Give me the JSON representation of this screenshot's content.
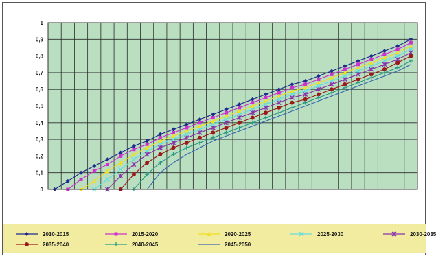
{
  "chart_data": {
    "type": "line",
    "y_ticks": [
      "0",
      "0,1",
      "0,2",
      "0,3",
      "0,4",
      "0,5",
      "0,6",
      "0,7",
      "0,8",
      "0,9",
      "1"
    ],
    "ylim": [
      0,
      1
    ],
    "x_count": 28,
    "grid": true,
    "legend_placement": "bottom",
    "plot_background": "#b9dfc0",
    "series": [
      {
        "name": "2010-2015",
        "color": "#1f2a8c",
        "marker": "diamond",
        "values": [
          0.0,
          0.05,
          0.1,
          0.14,
          0.18,
          0.22,
          0.26,
          0.29,
          0.33,
          0.36,
          0.39,
          0.42,
          0.45,
          0.48,
          0.51,
          0.54,
          0.57,
          0.6,
          0.63,
          0.65,
          0.68,
          0.71,
          0.74,
          0.77,
          0.8,
          0.83,
          0.86,
          0.9
        ]
      },
      {
        "name": "2015-2020",
        "color": "#cc33cc",
        "marker": "square",
        "values": [
          null,
          0.0,
          0.06,
          0.11,
          0.15,
          0.2,
          0.24,
          0.27,
          0.31,
          0.34,
          0.37,
          0.4,
          0.43,
          0.46,
          0.49,
          0.52,
          0.55,
          0.58,
          0.61,
          0.63,
          0.66,
          0.69,
          0.72,
          0.75,
          0.78,
          0.81,
          0.84,
          0.88
        ]
      },
      {
        "name": "2020-2025",
        "color": "#f0e020",
        "marker": "triangle",
        "values": [
          null,
          null,
          0.0,
          0.05,
          0.11,
          0.16,
          0.21,
          0.25,
          0.29,
          0.32,
          0.35,
          0.38,
          0.41,
          0.44,
          0.47,
          0.5,
          0.53,
          0.56,
          0.59,
          0.61,
          0.64,
          0.67,
          0.7,
          0.73,
          0.76,
          0.79,
          0.82,
          0.86
        ]
      },
      {
        "name": "2025-2030",
        "color": "#66dddd",
        "marker": "x",
        "values": [
          null,
          null,
          null,
          0.0,
          0.06,
          0.12,
          0.18,
          0.23,
          0.27,
          0.3,
          0.33,
          0.36,
          0.39,
          0.42,
          0.45,
          0.48,
          0.51,
          0.54,
          0.57,
          0.59,
          0.62,
          0.65,
          0.68,
          0.71,
          0.74,
          0.77,
          0.8,
          0.84
        ]
      },
      {
        "name": "2030-2035",
        "color": "#8833aa",
        "marker": "star",
        "values": [
          null,
          null,
          null,
          null,
          0.0,
          0.08,
          0.15,
          0.21,
          0.25,
          0.28,
          0.31,
          0.34,
          0.37,
          0.4,
          0.43,
          0.46,
          0.49,
          0.52,
          0.55,
          0.57,
          0.6,
          0.63,
          0.66,
          0.69,
          0.72,
          0.75,
          0.78,
          0.82
        ]
      },
      {
        "name": "2035-2040",
        "color": "#9a1a1a",
        "marker": "circle",
        "values": [
          null,
          null,
          null,
          null,
          null,
          0.0,
          0.09,
          0.16,
          0.21,
          0.25,
          0.28,
          0.31,
          0.34,
          0.37,
          0.4,
          0.43,
          0.46,
          0.49,
          0.52,
          0.54,
          0.57,
          0.6,
          0.63,
          0.66,
          0.69,
          0.72,
          0.76,
          0.8
        ]
      },
      {
        "name": "2040-2045",
        "color": "#2a9a86",
        "marker": "plus",
        "values": [
          null,
          null,
          null,
          null,
          null,
          null,
          0.0,
          0.09,
          0.16,
          0.21,
          0.25,
          0.28,
          0.31,
          0.34,
          0.37,
          0.4,
          0.43,
          0.46,
          0.49,
          0.52,
          0.55,
          0.58,
          0.61,
          0.64,
          0.67,
          0.7,
          0.73,
          0.77
        ]
      },
      {
        "name": "2045-2050",
        "color": "#3a6ab0",
        "marker": "none",
        "values": [
          null,
          null,
          null,
          null,
          null,
          null,
          null,
          0.0,
          0.1,
          0.16,
          0.21,
          0.25,
          0.29,
          0.32,
          0.35,
          0.38,
          0.41,
          0.44,
          0.47,
          0.5,
          0.53,
          0.56,
          0.59,
          0.62,
          0.65,
          0.68,
          0.71,
          0.75
        ]
      }
    ]
  }
}
